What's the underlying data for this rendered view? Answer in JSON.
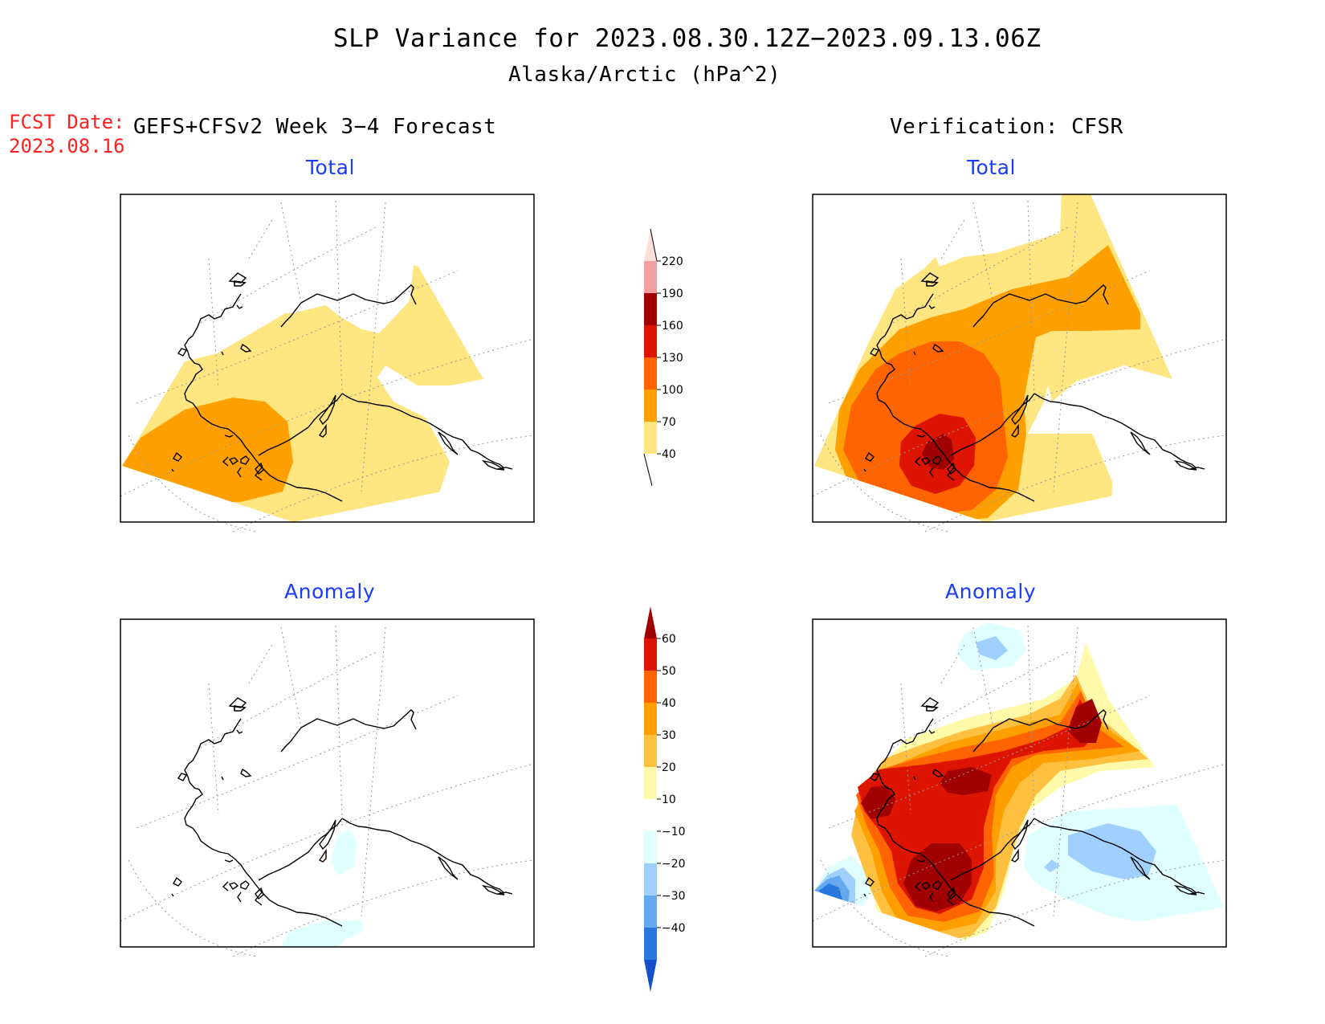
{
  "title": "SLP Variance for 2023.08.30.12Z−2023.09.13.06Z",
  "subtitle": "Alaska/Arctic (hPa^2)",
  "fcst_label": "FCST Date:",
  "fcst_date": "2023.08.16",
  "left_header": "GEFS+CFSv2 Week 3−4 Forecast",
  "right_header": "Verification: CFSR",
  "panels": {
    "top_left": "Total",
    "top_right": "Total",
    "bottom_left": "Anomaly",
    "bottom_right": "Anomaly"
  },
  "colorbar_total": {
    "labels": [
      "220",
      "190",
      "160",
      "130",
      "100",
      "70",
      "40"
    ],
    "colors": [
      "#fde0dc",
      "#f4a0a0",
      "#a00000",
      "#dc1400",
      "#ff6400",
      "#ffa000",
      "#ffe680"
    ]
  },
  "colorbar_anomaly": {
    "labels": [
      "60",
      "50",
      "40",
      "30",
      "20",
      "10",
      "−10",
      "−20",
      "−30",
      "−40"
    ],
    "colors": [
      "#a00000",
      "#dc1400",
      "#ff6400",
      "#ffa000",
      "#ffc040",
      "#fffaaa",
      "#ffffff",
      "#e0ffff",
      "#a0d0ff",
      "#64a8f0",
      "#2878e0",
      "#1450c8"
    ]
  }
}
